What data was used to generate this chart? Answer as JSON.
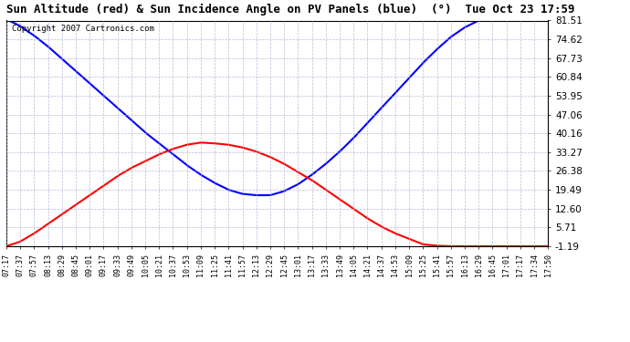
{
  "title": "Sun Altitude (red) & Sun Incidence Angle on PV Panels (blue)  (°)  Tue Oct 23 17:59",
  "copyright": "Copyright 2007 Cartronics.com",
  "yticks": [
    81.51,
    74.62,
    67.73,
    60.84,
    53.95,
    47.06,
    40.16,
    33.27,
    26.38,
    19.49,
    12.6,
    5.71,
    -1.19
  ],
  "ylim": [
    -1.19,
    81.51
  ],
  "xtick_labels": [
    "07:17",
    "07:37",
    "07:57",
    "08:13",
    "08:29",
    "08:45",
    "09:01",
    "09:17",
    "09:33",
    "09:49",
    "10:05",
    "10:21",
    "10:37",
    "10:53",
    "11:09",
    "11:25",
    "11:41",
    "11:57",
    "12:13",
    "12:29",
    "12:45",
    "13:01",
    "13:17",
    "13:33",
    "13:49",
    "14:05",
    "14:21",
    "14:37",
    "14:53",
    "15:09",
    "15:25",
    "15:41",
    "15:57",
    "16:13",
    "16:29",
    "16:45",
    "17:01",
    "17:17",
    "17:34",
    "17:50"
  ],
  "background_color": "#ffffff",
  "plot_bg_color": "#ffffff",
  "grid_color": "#aaaacc",
  "red_line_color": "#ff0000",
  "blue_line_color": "#0000ff",
  "line_width": 1.5,
  "red_data_x": [
    0,
    1,
    2,
    3,
    4,
    5,
    6,
    7,
    8,
    9,
    10,
    11,
    12,
    13,
    14,
    15,
    16,
    17,
    18,
    19,
    20,
    21,
    22,
    23,
    24,
    25,
    26,
    27,
    28,
    29,
    30,
    31,
    32,
    33,
    34,
    35,
    36,
    37,
    38,
    39
  ],
  "red_data_y": [
    -1.19,
    0.5,
    3.5,
    7.0,
    10.5,
    14.0,
    17.5,
    21.0,
    24.5,
    27.5,
    30.0,
    32.5,
    34.5,
    36.0,
    36.8,
    36.5,
    36.0,
    35.0,
    33.5,
    31.5,
    29.0,
    26.0,
    23.0,
    19.5,
    16.0,
    12.5,
    9.0,
    6.0,
    3.5,
    1.5,
    -0.5,
    -1.0,
    -1.19,
    -1.19,
    -1.19,
    -1.19,
    -1.19,
    -1.19,
    -1.19,
    -1.19
  ],
  "blue_data_x": [
    0,
    1,
    2,
    3,
    4,
    5,
    6,
    7,
    8,
    9,
    10,
    11,
    12,
    13,
    14,
    15,
    16,
    17,
    18,
    19,
    20,
    21,
    22,
    23,
    24,
    25,
    26,
    27,
    28,
    29,
    30,
    31,
    32,
    33,
    34,
    35,
    36,
    37,
    38,
    39
  ],
  "blue_data_y": [
    82.0,
    79.5,
    76.0,
    72.0,
    67.5,
    63.0,
    58.5,
    54.0,
    49.5,
    45.0,
    40.5,
    36.5,
    32.5,
    28.5,
    25.0,
    22.0,
    19.5,
    18.0,
    17.5,
    17.5,
    19.0,
    21.5,
    25.0,
    29.0,
    33.5,
    38.5,
    44.0,
    49.5,
    55.0,
    60.5,
    66.0,
    71.0,
    75.5,
    79.0,
    81.5,
    82.0,
    82.0,
    82.0,
    82.0,
    82.0
  ]
}
